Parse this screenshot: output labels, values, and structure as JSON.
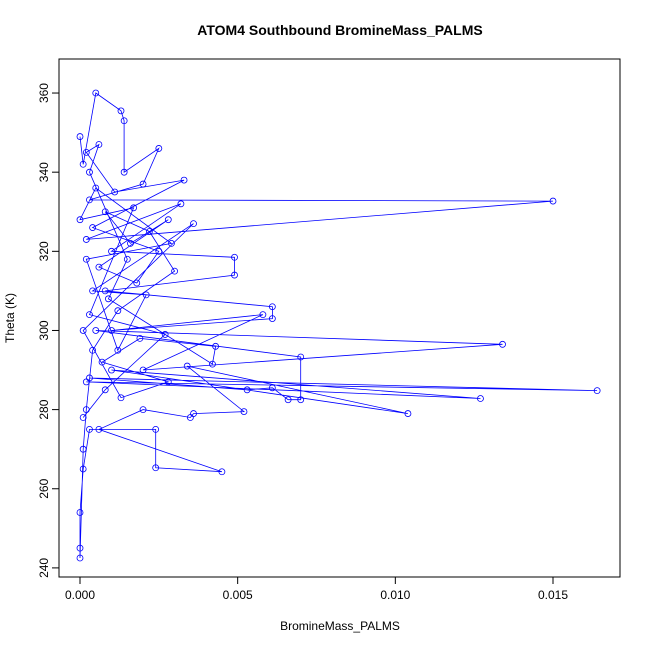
{
  "chart_data": {
    "type": "line",
    "title": "ATOM4 Southbound BromineMass_PALMS",
    "xlabel": "BromineMass_PALMS",
    "ylabel": "Theta (K)",
    "color": "#0000ff",
    "markers": true,
    "x": [
      0.0,
      0.0001,
      0.0005,
      0.0013,
      0.0014,
      0.0014,
      0.0025,
      0.002,
      0.0003,
      0.015,
      0.0002,
      0.0032,
      0.001,
      0.0049,
      0.0049,
      0.0008,
      0.0061,
      0.0061,
      0.001,
      0.0058,
      0.002,
      0.0134,
      0.0005,
      0.007,
      0.007,
      0.0066,
      0.0061,
      0.0053,
      0.0003,
      0.0164,
      0.0002,
      0.0127,
      0.001,
      0.0104,
      0.0034,
      0.0052,
      0.0036,
      0.0035,
      0.002,
      0.0006,
      0.0045,
      0.0024,
      0.0024,
      0.0003,
      0.0001,
      0.0,
      0.0,
      0.0,
      0.0001,
      0.0002,
      0.0004,
      0.0012,
      0.003,
      0.0022,
      0.0008,
      0.0016,
      0.0028,
      0.0006,
      0.0018,
      0.0025,
      0.0004,
      0.0033,
      0.0011,
      0.0002,
      0.0006,
      0.0003,
      0.0015,
      0.0009,
      0.0042,
      0.0043,
      0.0019,
      0.0007,
      0.0028,
      0.0013,
      0.0001,
      0.0036,
      0.0004,
      0.0021,
      0.0012,
      0.0002,
      0.0029,
      0.0005,
      0.0,
      0.0017,
      0.0003,
      0.0027,
      0.0008,
      0.0001
    ],
    "values": [
      349,
      342,
      360,
      355.5,
      353,
      340,
      346,
      337,
      333,
      332.7,
      323,
      332,
      320,
      318.5,
      314,
      310,
      306,
      303,
      300,
      304,
      290,
      296.5,
      300,
      293.3,
      282.5,
      282.5,
      285.5,
      285,
      288,
      284.8,
      287,
      282.8,
      290,
      279,
      291,
      279.5,
      279,
      278,
      280,
      275,
      264.3,
      265.3,
      275,
      275,
      265,
      254,
      245,
      242.5,
      270,
      280,
      295,
      305,
      315,
      325,
      330,
      322,
      328,
      316,
      312,
      320,
      326,
      338,
      335,
      345,
      347,
      340,
      318,
      308,
      291.5,
      296,
      298,
      292,
      287,
      283,
      300,
      327,
      310,
      309,
      295,
      318,
      322,
      336,
      328,
      331,
      304,
      299,
      285,
      278
    ],
    "xlim": [
      -0.000666,
      0.017125
    ],
    "ylim": [
      237.7,
      368.6
    ],
    "xticks": [
      {
        "value": 0,
        "label": "0.000"
      },
      {
        "value": 0.005,
        "label": "0.005"
      },
      {
        "value": 0.01,
        "label": "0.010"
      },
      {
        "value": 0.015,
        "label": "0.015"
      }
    ],
    "yticks": [
      240,
      260,
      280,
      300,
      320,
      340,
      360
    ]
  }
}
